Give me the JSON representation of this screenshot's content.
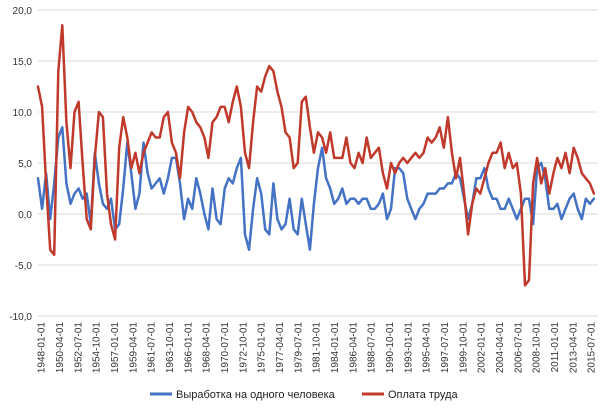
{
  "chart_data": {
    "type": "line",
    "title": "",
    "xlabel": "",
    "ylabel": "",
    "ylim": [
      -10,
      20
    ],
    "yticks": [
      "-10,0",
      "-5,0",
      "0,0",
      "5,0",
      "10,0",
      "15,0",
      "20,0"
    ],
    "grid": true,
    "legend_position": "bottom",
    "x_tick_labels": [
      "1948-01-01",
      "1950-04-01",
      "1952-07-01",
      "1954-10-01",
      "1957-01-01",
      "1959-04-01",
      "1961-07-01",
      "1963-10-01",
      "1966-01-01",
      "1968-04-01",
      "1970-07-01",
      "1972-10-01",
      "1975-01-01",
      "1977-04-01",
      "1979-07-01",
      "1981-10-01",
      "1984-01-01",
      "1986-04-01",
      "1988-07-01",
      "1990-10-01",
      "1993-01-01",
      "1995-04-01",
      "1997-07-01",
      "1999-10-01",
      "2002-01-01",
      "2004-04-01",
      "2006-07-01",
      "2008-10-01",
      "2011-01-01",
      "2013-04-01",
      "2015-07-01"
    ],
    "series": [
      {
        "name": "Выработка на одного человека",
        "color": "#4472c4",
        "x": [
          1948.0,
          1948.5,
          1949.0,
          1949.5,
          1950.0,
          1950.5,
          1951.0,
          1951.5,
          1952.0,
          1952.5,
          1953.0,
          1953.5,
          1954.0,
          1954.5,
          1955.0,
          1955.5,
          1956.0,
          1956.5,
          1957.0,
          1957.5,
          1958.0,
          1958.5,
          1959.0,
          1959.5,
          1960.0,
          1960.5,
          1961.0,
          1961.5,
          1962.0,
          1962.5,
          1963.0,
          1963.5,
          1964.0,
          1964.5,
          1965.0,
          1965.5,
          1966.0,
          1966.5,
          1967.0,
          1967.5,
          1968.0,
          1968.5,
          1969.0,
          1969.5,
          1970.0,
          1970.5,
          1971.0,
          1971.5,
          1972.0,
          1972.5,
          1973.0,
          1973.5,
          1974.0,
          1974.5,
          1975.0,
          1975.5,
          1976.0,
          1976.5,
          1977.0,
          1977.5,
          1978.0,
          1978.5,
          1979.0,
          1979.5,
          1980.0,
          1980.5,
          1981.0,
          1981.5,
          1982.0,
          1982.5,
          1983.0,
          1983.5,
          1984.0,
          1984.5,
          1985.0,
          1985.5,
          1986.0,
          1986.5,
          1987.0,
          1987.5,
          1988.0,
          1988.5,
          1989.0,
          1989.5,
          1990.0,
          1990.5,
          1991.0,
          1991.5,
          1992.0,
          1992.5,
          1993.0,
          1993.5,
          1994.0,
          1994.5,
          1995.0,
          1995.5,
          1996.0,
          1996.5,
          1997.0,
          1997.5,
          1998.0,
          1998.5,
          1999.0,
          1999.5,
          2000.0,
          2000.5,
          2001.0,
          2001.5,
          2002.0,
          2002.5,
          2003.0,
          2003.5,
          2004.0,
          2004.5,
          2005.0,
          2005.5,
          2006.0,
          2006.5,
          2007.0,
          2007.5,
          2008.0,
          2008.5,
          2009.0,
          2009.5,
          2010.0,
          2010.5,
          2011.0,
          2011.5,
          2012.0,
          2012.5,
          2013.0,
          2013.5,
          2014.0,
          2014.5,
          2015.0,
          2015.5,
          2016.0,
          2016.5
        ],
        "y": [
          3.5,
          0.5,
          4.0,
          -0.5,
          3.0,
          7.5,
          8.5,
          3.0,
          1.0,
          2.0,
          2.5,
          1.5,
          2.0,
          -1.0,
          6.0,
          3.0,
          1.0,
          0.5,
          1.5,
          -1.5,
          -1.0,
          2.5,
          7.0,
          4.0,
          0.5,
          2.0,
          7.0,
          4.0,
          2.5,
          3.0,
          3.5,
          2.0,
          3.5,
          5.5,
          5.5,
          3.0,
          -0.5,
          1.5,
          0.5,
          3.5,
          2.0,
          0.0,
          -1.5,
          2.5,
          -0.5,
          -1.0,
          2.5,
          3.5,
          3.0,
          4.5,
          5.5,
          -2.0,
          -3.5,
          0.5,
          3.5,
          2.0,
          -1.5,
          -2.0,
          3.0,
          -0.5,
          -1.5,
          -1.0,
          1.5,
          -1.5,
          -2.0,
          1.5,
          -1.0,
          -3.5,
          1.0,
          4.5,
          6.5,
          3.5,
          2.5,
          1.0,
          1.5,
          2.5,
          1.0,
          1.5,
          1.5,
          1.0,
          1.5,
          1.5,
          0.5,
          0.5,
          1.0,
          2.0,
          -0.5,
          0.5,
          4.5,
          4.5,
          4.0,
          1.5,
          0.5,
          -0.5,
          0.5,
          1.0,
          2.0,
          2.0,
          2.0,
          2.5,
          2.5,
          3.0,
          3.0,
          4.0,
          3.5,
          1.5,
          -0.5,
          1.0,
          3.5,
          3.5,
          4.5,
          2.5,
          1.5,
          1.5,
          0.5,
          0.5,
          1.5,
          0.5,
          -0.5,
          0.5,
          1.5,
          1.5,
          -1.0,
          4.5,
          5.0,
          3.5,
          0.5,
          0.5,
          1.0,
          -0.5,
          0.5,
          1.5,
          2.0,
          0.5,
          -0.5,
          1.5,
          1.0,
          1.5
        ]
      },
      {
        "name": "Оплата труда",
        "color": "#c0392b",
        "x": [
          1948.0,
          1948.5,
          1949.0,
          1949.5,
          1950.0,
          1950.5,
          1951.0,
          1951.5,
          1952.0,
          1952.5,
          1953.0,
          1953.5,
          1954.0,
          1954.5,
          1955.0,
          1955.5,
          1956.0,
          1956.5,
          1957.0,
          1957.5,
          1958.0,
          1958.5,
          1959.0,
          1959.5,
          1960.0,
          1960.5,
          1961.0,
          1961.5,
          1962.0,
          1962.5,
          1963.0,
          1963.5,
          1964.0,
          1964.5,
          1965.0,
          1965.5,
          1966.0,
          1966.5,
          1967.0,
          1967.5,
          1968.0,
          1968.5,
          1969.0,
          1969.5,
          1970.0,
          1970.5,
          1971.0,
          1971.5,
          1972.0,
          1972.5,
          1973.0,
          1973.5,
          1974.0,
          1974.5,
          1975.0,
          1975.5,
          1976.0,
          1976.5,
          1977.0,
          1977.5,
          1978.0,
          1978.5,
          1979.0,
          1979.5,
          1980.0,
          1980.5,
          1981.0,
          1981.5,
          1982.0,
          1982.5,
          1983.0,
          1983.5,
          1984.0,
          1984.5,
          1985.0,
          1985.5,
          1986.0,
          1986.5,
          1987.0,
          1987.5,
          1988.0,
          1988.5,
          1989.0,
          1989.5,
          1990.0,
          1990.5,
          1991.0,
          1991.5,
          1992.0,
          1992.5,
          1993.0,
          1993.5,
          1994.0,
          1994.5,
          1995.0,
          1995.5,
          1996.0,
          1996.5,
          1997.0,
          1997.5,
          1998.0,
          1998.5,
          1999.0,
          1999.5,
          2000.0,
          2000.5,
          2001.0,
          2001.5,
          2002.0,
          2002.5,
          2003.0,
          2003.5,
          2004.0,
          2004.5,
          2005.0,
          2005.5,
          2006.0,
          2006.5,
          2007.0,
          2007.5,
          2008.0,
          2008.5,
          2009.0,
          2009.5,
          2010.0,
          2010.5,
          2011.0,
          2011.5,
          2012.0,
          2012.5,
          2013.0,
          2013.5,
          2014.0,
          2014.5,
          2015.0,
          2015.5,
          2016.0,
          2016.5
        ],
        "y": [
          12.5,
          10.5,
          3.0,
          -3.5,
          -4.0,
          14.0,
          18.5,
          9.0,
          4.5,
          10.0,
          11.0,
          5.0,
          -0.5,
          -1.5,
          5.5,
          10.0,
          9.5,
          2.0,
          -1.0,
          -2.5,
          6.5,
          9.5,
          7.5,
          4.5,
          6.0,
          4.0,
          6.0,
          7.0,
          8.0,
          7.5,
          7.5,
          9.5,
          10.0,
          7.0,
          6.0,
          3.5,
          8.0,
          10.5,
          10.0,
          9.0,
          8.5,
          7.5,
          5.5,
          9.0,
          9.5,
          10.5,
          10.5,
          9.0,
          11.0,
          12.5,
          10.5,
          6.0,
          4.5,
          9.0,
          12.5,
          12.0,
          13.5,
          14.5,
          14.0,
          12.0,
          10.5,
          8.0,
          7.5,
          4.5,
          5.0,
          11.0,
          11.5,
          8.5,
          6.0,
          8.0,
          7.5,
          6.0,
          8.0,
          5.5,
          5.5,
          5.5,
          7.5,
          5.0,
          4.5,
          6.0,
          5.0,
          7.5,
          5.5,
          6.0,
          6.5,
          4.0,
          2.5,
          5.0,
          4.0,
          5.0,
          5.5,
          5.0,
          5.5,
          6.0,
          5.5,
          6.0,
          7.5,
          7.0,
          7.5,
          8.5,
          6.5,
          9.5,
          6.0,
          3.5,
          5.5,
          2.0,
          -2.0,
          1.0,
          2.5,
          2.0,
          3.5,
          5.0,
          6.0,
          6.0,
          7.0,
          4.5,
          6.0,
          4.5,
          5.0,
          2.0,
          -7.0,
          -6.5,
          3.0,
          5.5,
          3.0,
          4.5,
          2.0,
          4.0,
          5.5,
          4.5,
          6.0,
          4.0,
          6.5,
          5.5,
          4.0,
          3.5,
          3.0,
          2.0
        ]
      }
    ]
  }
}
